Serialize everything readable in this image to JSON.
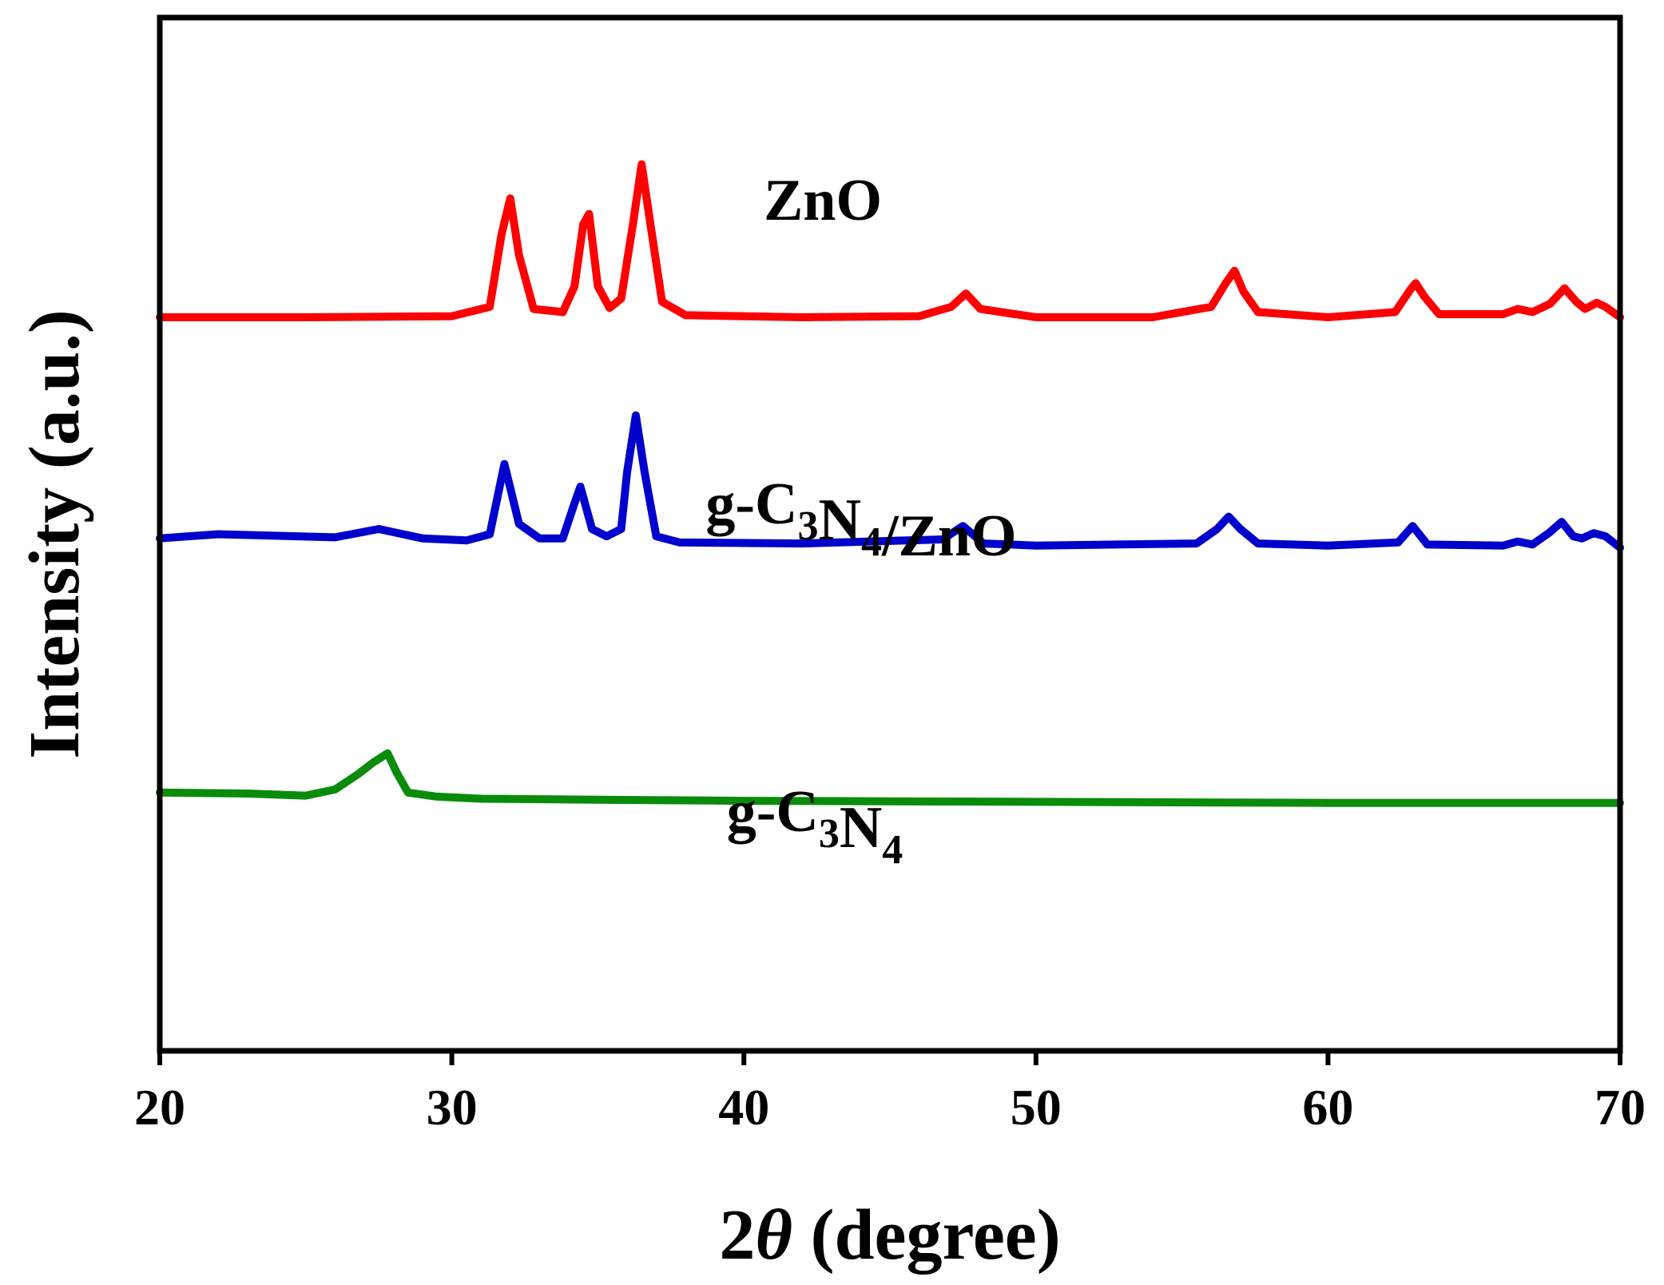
{
  "chart_data": {
    "type": "line",
    "title": "",
    "xlabel_prefix": "2",
    "xlabel_symbol": "θ",
    "xlabel_suffix": " (degree)",
    "ylabel": "Intensity (a.u.)",
    "xlim": [
      20,
      70
    ],
    "ylim": [
      0,
      100
    ],
    "xticks": [
      "20",
      "30",
      "40",
      "50",
      "60",
      "70"
    ],
    "yticks_shown": false,
    "grid": false,
    "legend": "inline labels above each trace",
    "series": [
      {
        "name_parts": [
          {
            "t": "ZnO",
            "sub": ""
          }
        ],
        "color": "#ff0000",
        "x": [
          20,
          25,
          30,
          31.3,
          31.7,
          32.0,
          32.3,
          32.8,
          33.8,
          34.2,
          34.5,
          34.7,
          35.0,
          35.4,
          35.8,
          36.2,
          36.5,
          36.8,
          37.2,
          38,
          42,
          46,
          47.1,
          47.6,
          48.1,
          50,
          54,
          56.0,
          56.5,
          56.8,
          57.1,
          57.6,
          60,
          62.3,
          62.8,
          63.0,
          63.3,
          63.8,
          66.0,
          66.5,
          67.0,
          67.6,
          68.1,
          68.5,
          68.8,
          69.2,
          69.5,
          70
        ],
        "y": [
          71.0,
          71.0,
          71.1,
          72.0,
          79.0,
          82.5,
          77.0,
          71.8,
          71.5,
          74.0,
          80.0,
          81.0,
          74.0,
          71.9,
          72.8,
          80.0,
          85.8,
          80.0,
          72.5,
          71.2,
          71.0,
          71.1,
          72.0,
          73.3,
          71.8,
          71.0,
          71.0,
          72.0,
          74.3,
          75.5,
          73.5,
          71.5,
          71.0,
          71.5,
          73.6,
          74.3,
          73.0,
          71.3,
          71.3,
          71.8,
          71.5,
          72.3,
          73.8,
          72.5,
          71.8,
          72.4,
          72.0,
          71.0
        ]
      },
      {
        "name_parts": [
          {
            "t": "g-C",
            "sub": "3"
          },
          {
            "t": "N",
            "sub": "4"
          },
          {
            "t": "/ZnO",
            "sub": ""
          }
        ],
        "color": "#0000cc",
        "x": [
          20,
          22,
          26,
          27.5,
          29,
          30.5,
          31.3,
          31.8,
          32.3,
          33.0,
          33.8,
          34.2,
          34.4,
          34.8,
          35.3,
          35.8,
          36.0,
          36.3,
          36.6,
          37.0,
          37.8,
          42,
          46.8,
          47.5,
          48.2,
          50,
          55.5,
          56.2,
          56.6,
          57.0,
          57.6,
          60,
          62.4,
          62.9,
          63.4,
          66,
          66.5,
          67.0,
          67.6,
          68.0,
          68.4,
          68.7,
          69.1,
          69.5,
          70
        ],
        "y": [
          49.6,
          50.0,
          49.7,
          50.5,
          49.6,
          49.4,
          50.0,
          56.8,
          51.0,
          49.6,
          49.6,
          53.0,
          54.6,
          50.5,
          49.8,
          50.5,
          56.0,
          61.5,
          56.0,
          49.8,
          49.2,
          49.1,
          49.5,
          50.8,
          49.1,
          48.9,
          49.1,
          50.5,
          51.7,
          50.5,
          49.1,
          48.9,
          49.2,
          50.8,
          49.0,
          48.9,
          49.3,
          49.0,
          50.2,
          51.2,
          49.8,
          49.6,
          50.1,
          49.8,
          48.7
        ]
      },
      {
        "name_parts": [
          {
            "t": "g-C",
            "sub": "3"
          },
          {
            "t": "N",
            "sub": "4"
          }
        ],
        "color": "#0a8c0a",
        "x": [
          20,
          23,
          25,
          26,
          26.8,
          27.3,
          27.8,
          28.1,
          28.5,
          29.5,
          31,
          35,
          40,
          50,
          60,
          70
        ],
        "y": [
          25.0,
          24.9,
          24.7,
          25.3,
          26.8,
          27.9,
          28.8,
          27.0,
          25.0,
          24.6,
          24.4,
          24.3,
          24.2,
          24.1,
          24.0,
          24.0
        ]
      }
    ]
  }
}
